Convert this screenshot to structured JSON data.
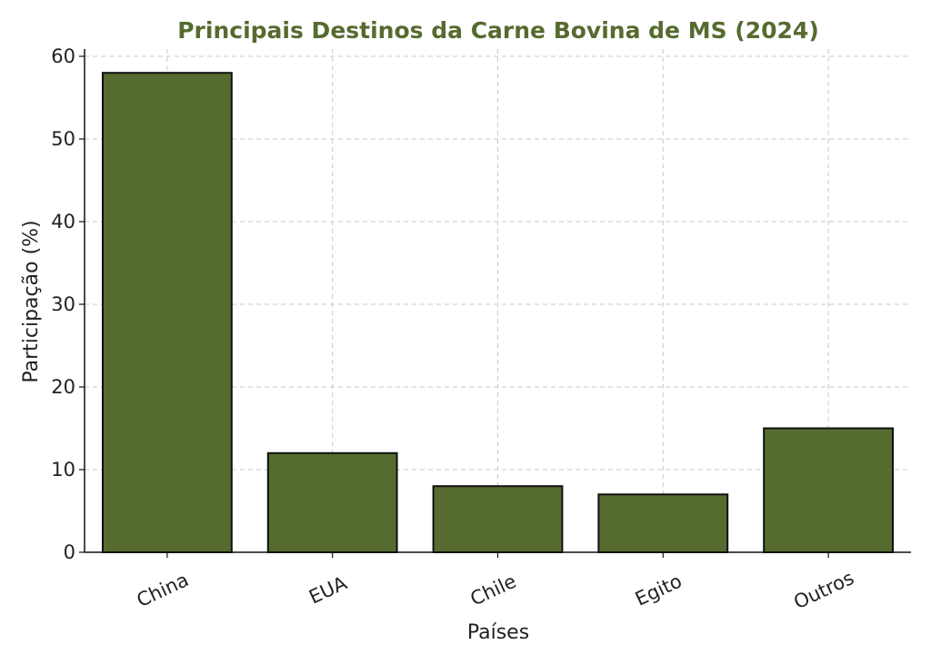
{
  "chart_data": {
    "type": "bar",
    "title": "Principais Destinos da Carne Bovina de MS (2024)",
    "xlabel": "Países",
    "ylabel": "Participação (%)",
    "categories": [
      "China",
      "EUA",
      "Chile",
      "Egito",
      "Outros"
    ],
    "values": [
      58,
      12,
      8,
      7,
      15
    ],
    "ylim": [
      0,
      60
    ],
    "yticks": [
      0,
      10,
      20,
      30,
      40,
      50,
      60
    ],
    "grid": true,
    "bar_color": "#556b2f",
    "title_color": "#556b2f",
    "bar_edge_color": "#111111"
  }
}
